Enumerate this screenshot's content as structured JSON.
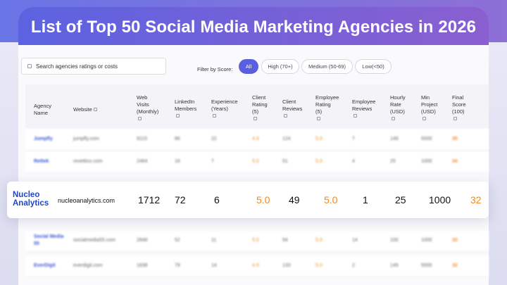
{
  "title": "List of Top 50 Social Media Marketing Agencies in 2026",
  "search": {
    "placeholder": "Search agencies ratings or costs"
  },
  "filter": {
    "label": "Filter by Score:",
    "options": [
      "All",
      "High (70+)",
      "Medium (50-69)",
      "Low(<50)"
    ],
    "selected": "All"
  },
  "columns": [
    [
      "Agency",
      "Name"
    ],
    [
      "Website"
    ],
    [
      "Web",
      "Visits",
      "(Monthly)"
    ],
    [
      "LinkedIn",
      "Members"
    ],
    [
      "Experience",
      "(Years)"
    ],
    [
      "Client",
      "Rating",
      "(5)"
    ],
    [
      "Client",
      "Reviews"
    ],
    [
      "Employee",
      "Rating",
      "(5)"
    ],
    [
      "Employee",
      "Reviews"
    ],
    [
      "Hourly",
      "Rate",
      "(USD)"
    ],
    [
      "Min",
      "Project",
      "(USD)"
    ],
    [
      "Final",
      "Score",
      "(100)"
    ]
  ],
  "rows_above": [
    {
      "name": "Jumpfly",
      "website": "jumpfly.com",
      "visits": "9115",
      "linkedin": "86",
      "experience": "22",
      "client_rating": "4.9",
      "client_reviews": "124",
      "employee_rating": "5.0",
      "employee_reviews": "7",
      "hourly": "149",
      "min_project": "5000",
      "score": "35"
    },
    {
      "name": "Rettek",
      "website": "revettico.com",
      "visits": "2464",
      "linkedin": "16",
      "experience": "7",
      "client_rating": "5.0",
      "client_reviews": "51",
      "employee_rating": "5.0",
      "employee_reviews": "4",
      "hourly": "25",
      "min_project": "1000",
      "score": "34"
    }
  ],
  "highlight_row": {
    "name": "Nucleo Analytics",
    "website": "nucleoanalytics.com",
    "visits": "1712",
    "linkedin": "72",
    "experience": "6",
    "client_rating": "5.0",
    "client_reviews": "49",
    "employee_rating": "5.0",
    "employee_reviews": "1",
    "hourly": "25",
    "min_project": "1000",
    "score": "32"
  },
  "rows_below": [
    {
      "name": "Social Media 55",
      "website": "socialmedia55.com",
      "visits": "2848",
      "linkedin": "52",
      "experience": "11",
      "client_rating": "5.0",
      "client_reviews": "94",
      "employee_rating": "5.0",
      "employee_reviews": "14",
      "hourly": "100",
      "min_project": "1000",
      "score": "32"
    },
    {
      "name": "EverDigit",
      "website": "everdigit.com",
      "visits": "1838",
      "linkedin": "79",
      "experience": "14",
      "client_rating": "4.9",
      "client_reviews": "133",
      "employee_rating": "5.0",
      "employee_reviews": "2",
      "hourly": "149",
      "min_project": "5000",
      "score": "32"
    }
  ],
  "colors": {
    "accent": "#5a5fe0",
    "link_blue": "#1f46c8",
    "score_orange": "#f08a22"
  }
}
